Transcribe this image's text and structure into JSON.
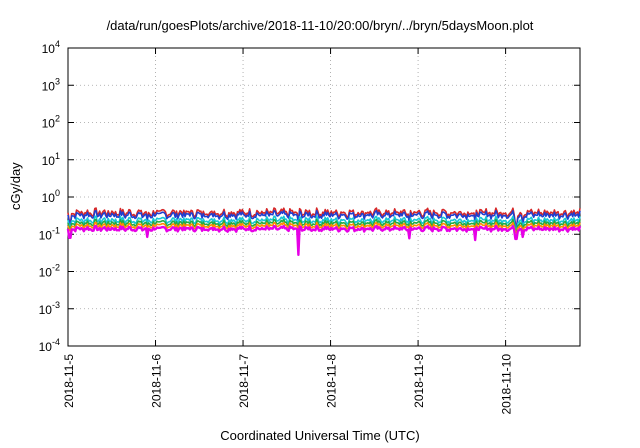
{
  "chart_data": {
    "type": "line",
    "title": "/data/run/goesPlots/archive/2018-11-10/20:00/bryn/../bryn/5daysMoon.plot",
    "xlabel": "Coordinated Universal Time (UTC)",
    "ylabel": "cGy/day",
    "yscale": "log",
    "ylim": [
      0.0001,
      10000
    ],
    "yticks": [
      {
        "exp": "-4"
      },
      {
        "exp": "-3"
      },
      {
        "exp": "-2"
      },
      {
        "exp": "-1"
      },
      {
        "exp": "0"
      },
      {
        "exp": "1"
      },
      {
        "exp": "2"
      },
      {
        "exp": "3"
      },
      {
        "exp": "4"
      }
    ],
    "xticks": [
      "2018-11-5",
      "2018-11-6",
      "2018-11-7",
      "2018-11-8",
      "2018-11-9",
      "2018-11-10"
    ],
    "xlim_days": [
      0,
      5.85
    ],
    "grid": true,
    "series": [
      {
        "color": "#d62728",
        "base": 0.38
      },
      {
        "color": "#1f3fcf",
        "base": 0.33
      },
      {
        "color": "#17c7d6",
        "base": 0.24
      },
      {
        "color": "#22aa44",
        "base": 0.2
      },
      {
        "color": "#ff8c00",
        "base": 0.17
      },
      {
        "color": "#e600e6",
        "base": 0.14
      }
    ],
    "dips": [
      {
        "day": 0.02,
        "value": 0.08
      },
      {
        "day": 0.9,
        "value": 0.085
      },
      {
        "day": 2.63,
        "value": 0.028
      },
      {
        "day": 3.9,
        "value": 0.078
      },
      {
        "day": 4.65,
        "value": 0.07
      },
      {
        "day": 5.12,
        "value": 0.075
      },
      {
        "day": 5.2,
        "value": 0.085
      }
    ]
  }
}
